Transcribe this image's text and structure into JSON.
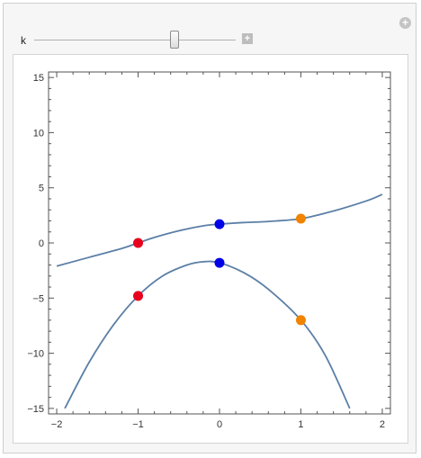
{
  "controls": {
    "slider_label": "k",
    "slider_fraction": 0.71
  },
  "chart_data": {
    "type": "line",
    "title": "",
    "xlabel": "",
    "ylabel": "",
    "xlim": [
      -2.1,
      2.1
    ],
    "ylim": [
      -15.5,
      15.5
    ],
    "x_ticks": [
      -2,
      -1,
      0,
      1,
      2
    ],
    "x_tick_labels": [
      "−2",
      "−1",
      "0",
      "1",
      "2"
    ],
    "y_ticks": [
      15,
      10,
      5,
      0,
      -5,
      -10,
      -15
    ],
    "y_tick_labels": [
      "15",
      "10",
      "5",
      "0",
      "−5",
      "−10",
      "−15"
    ],
    "grid": false,
    "series": [
      {
        "color": "#5b7fa6",
        "x": [
          -2.0,
          -1.6,
          -1.2,
          -1.0,
          -0.8,
          -0.5,
          -0.2,
          0.0,
          0.3,
          0.6,
          1.0,
          1.4,
          1.8,
          2.0
        ],
        "y": [
          -2.1,
          -1.3,
          -0.5,
          0.0,
          0.5,
          1.1,
          1.55,
          1.7,
          1.85,
          1.95,
          2.2,
          2.9,
          3.8,
          4.4
        ]
      },
      {
        "color": "#5b7fa6",
        "x": [
          -1.9,
          -1.6,
          -1.3,
          -1.0,
          -0.7,
          -0.4,
          -0.2,
          0.0,
          0.3,
          0.6,
          1.0,
          1.3,
          1.6
        ],
        "y": [
          -15.0,
          -10.8,
          -7.4,
          -4.8,
          -3.0,
          -2.0,
          -1.7,
          -1.8,
          -2.7,
          -4.2,
          -7.0,
          -10.2,
          -15.0
        ]
      }
    ],
    "points": [
      {
        "x": -1,
        "y": 0.0,
        "color": "#e8001c"
      },
      {
        "x": 0,
        "y": 1.7,
        "color": "#0000e8"
      },
      {
        "x": 1,
        "y": 2.2,
        "color": "#f08300"
      },
      {
        "x": -1,
        "y": -4.8,
        "color": "#e8001c"
      },
      {
        "x": 0,
        "y": -1.8,
        "color": "#0000e8"
      },
      {
        "x": 1,
        "y": -7.0,
        "color": "#f08300"
      }
    ]
  }
}
